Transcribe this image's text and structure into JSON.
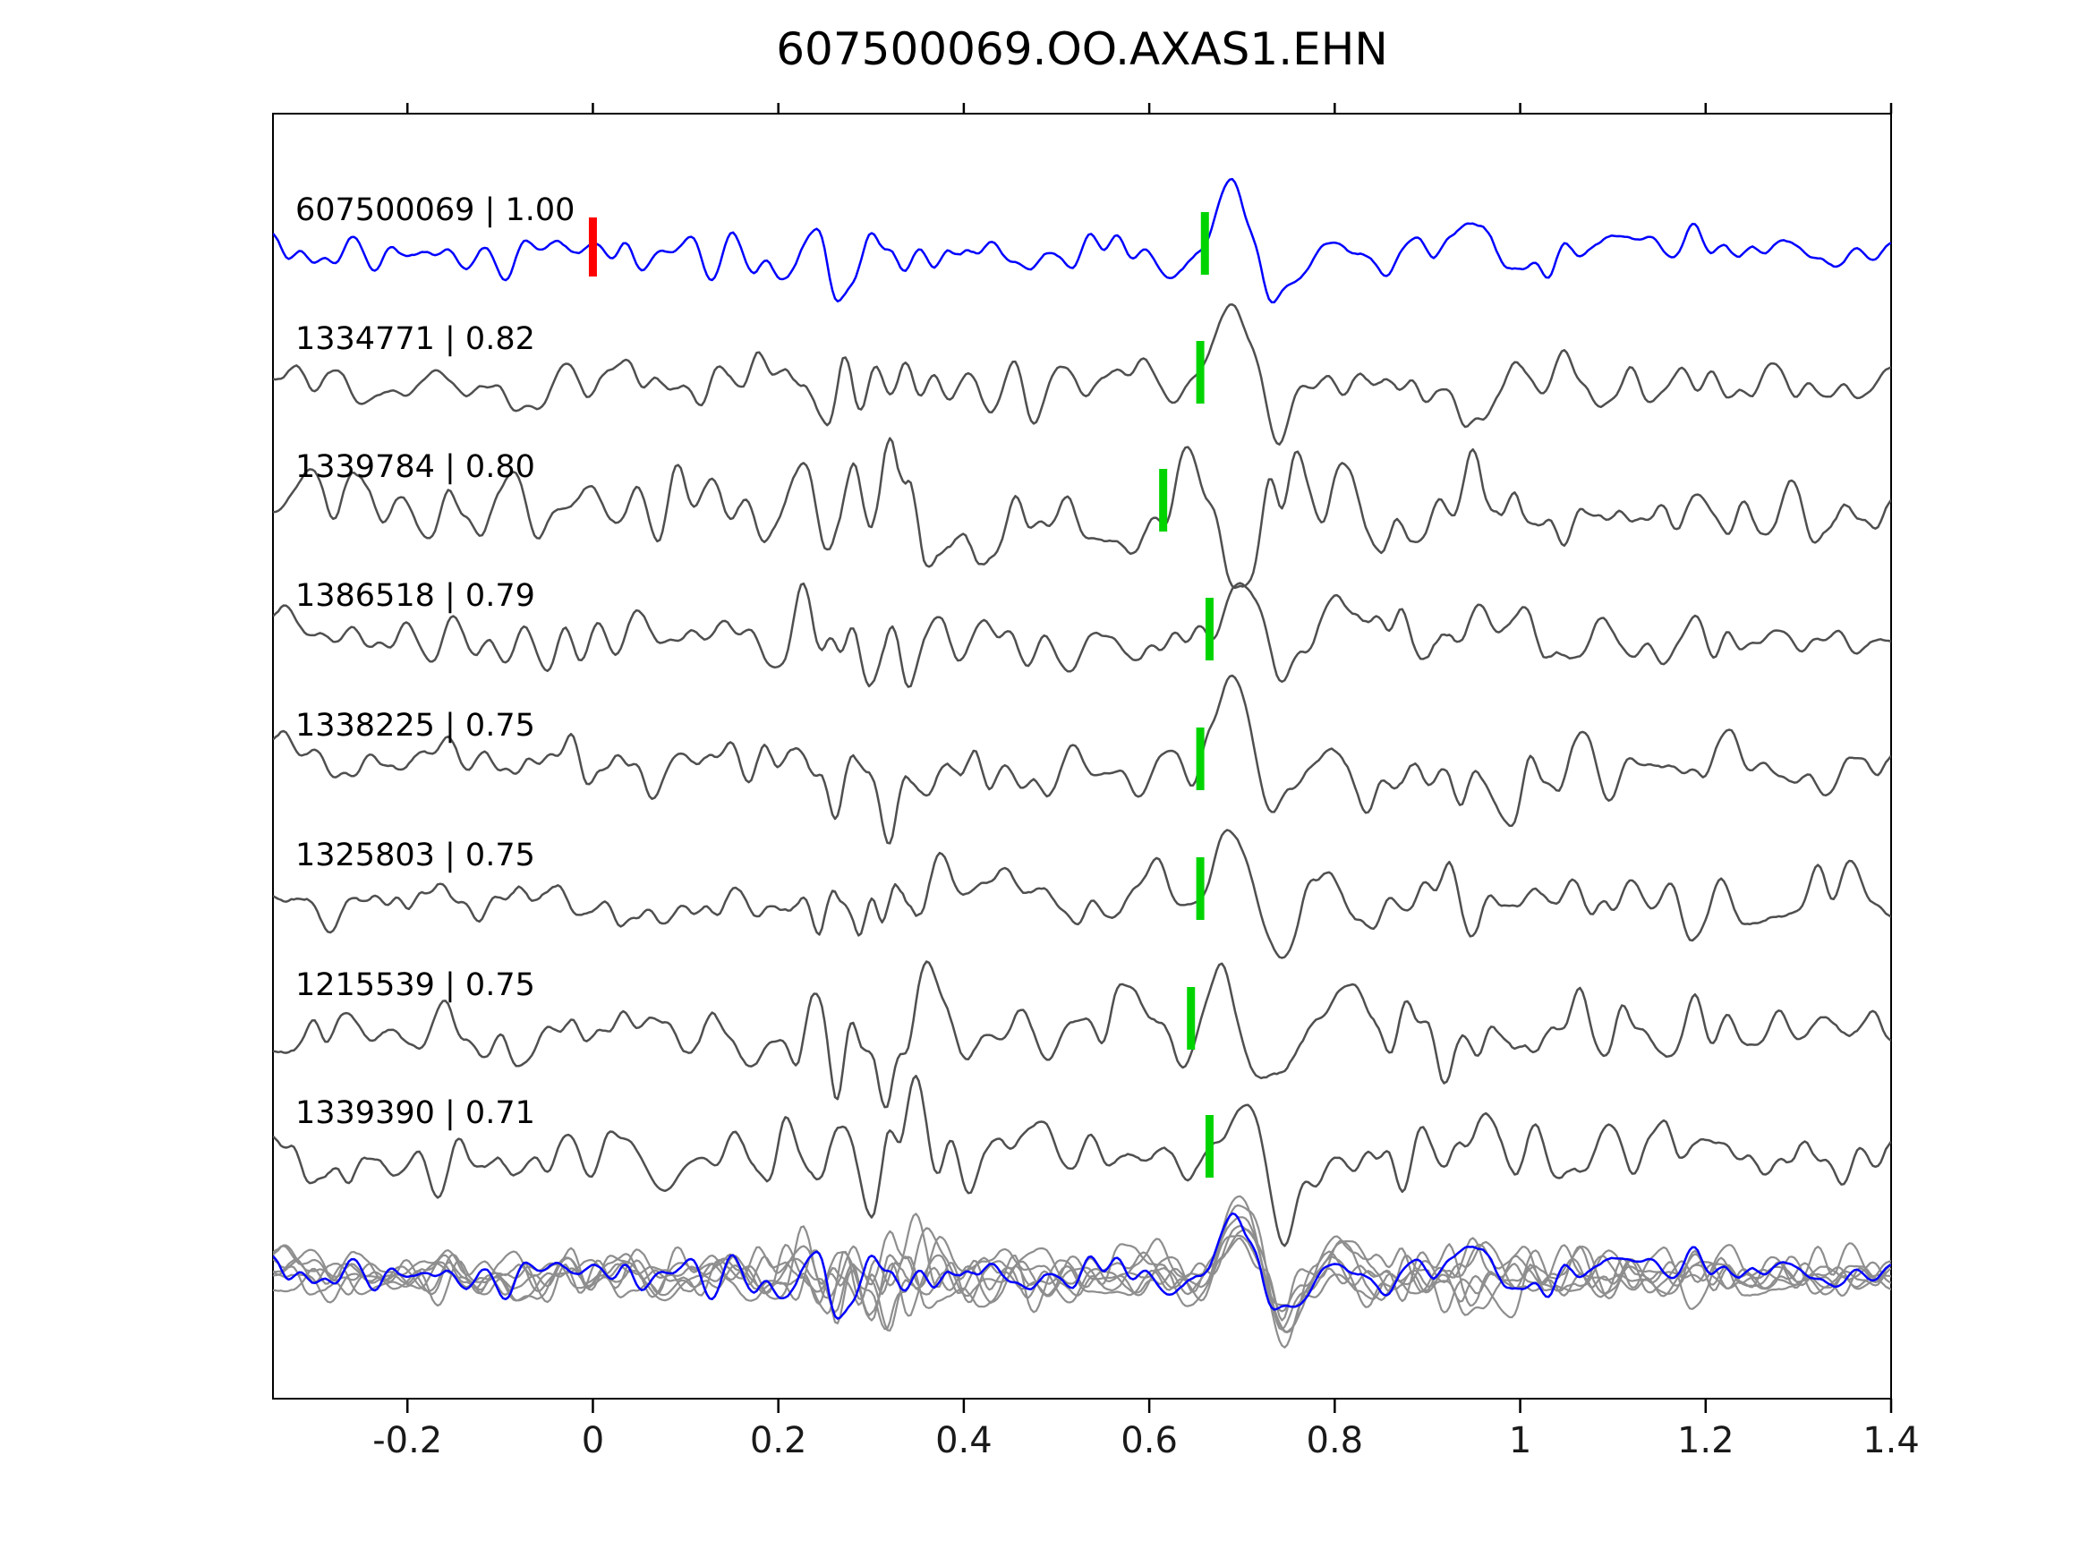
{
  "chart_data": {
    "type": "line",
    "title": "607500069.OO.AXAS1.EHN",
    "x_range": [
      -0.345,
      1.4
    ],
    "x_ticks": [
      -0.2,
      0,
      0.2,
      0.4,
      0.6,
      0.8,
      1,
      1.2,
      1.4
    ],
    "x_tick_labels": [
      "-0.2",
      "0",
      "0.2",
      "0.4",
      "0.6",
      "0.8",
      "1",
      "1.2",
      "1.4"
    ],
    "grid": false,
    "legend": "none",
    "colors": {
      "template_trace": "#0000ff",
      "detection_trace": "#4f4f4f",
      "stack_traces": "#8e8e8e",
      "pick_marker": "#00d400",
      "origin_marker": "#ff0000",
      "frame": "#000000"
    },
    "traces": [
      {
        "label": "607500069 | 1.00",
        "id": "607500069",
        "correlation": "1.00",
        "role": "template",
        "pick_time": 0.66,
        "origin_time_marker": 0.0
      },
      {
        "label": "1334771 | 0.82",
        "id": "1334771",
        "correlation": "0.82",
        "role": "detection",
        "pick_time": 0.655
      },
      {
        "label": "1339784 | 0.80",
        "id": "1339784",
        "correlation": "0.80",
        "role": "detection",
        "pick_time": 0.615
      },
      {
        "label": "1386518 | 0.79",
        "id": "1386518",
        "correlation": "0.79",
        "role": "detection",
        "pick_time": 0.665
      },
      {
        "label": "1338225 | 0.75",
        "id": "1338225",
        "correlation": "0.75",
        "role": "detection",
        "pick_time": 0.655
      },
      {
        "label": "1325803 | 0.75",
        "id": "1325803",
        "correlation": "0.75",
        "role": "detection",
        "pick_time": 0.655
      },
      {
        "label": "1215539 | 0.75",
        "id": "1215539",
        "correlation": "0.75",
        "role": "detection",
        "pick_time": 0.645
      },
      {
        "label": "1339390 | 0.71",
        "id": "1339390",
        "correlation": "0.71",
        "role": "detection",
        "pick_time": 0.665
      }
    ],
    "stack_row": {
      "description": "all detection waveforms overlaid in gray with blue template overlay",
      "alignment_time": 0.665
    }
  }
}
